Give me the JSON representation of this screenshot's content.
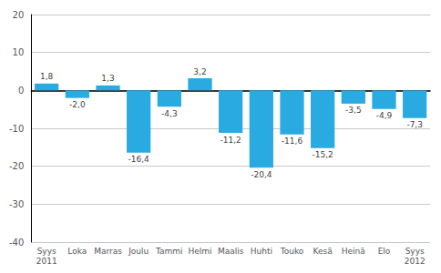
{
  "chart_data": {
    "type": "bar",
    "categories": [
      "Syys\n2011",
      "Loka",
      "Marras",
      "Joulu",
      "Tammi",
      "Helmi",
      "Maalis",
      "Huhti",
      "Touko",
      "Kesä",
      "Heinä",
      "Elo",
      "Syys\n2012"
    ],
    "values": [
      1.8,
      -2.0,
      1.3,
      -16.4,
      -4.3,
      3.2,
      -11.2,
      -20.4,
      -11.6,
      -15.2,
      -3.5,
      -4.9,
      -7.3
    ],
    "value_labels": [
      "1,8",
      "-2,0",
      "1,3",
      "-16,4",
      "-4,3",
      "3,2",
      "-11,2",
      "-20,4",
      "-11,6",
      "-15,2",
      "-3,5",
      "-4,9",
      "-7,3"
    ],
    "data_labels": true,
    "color": "#29abe2",
    "ylim": [
      -40,
      20
    ],
    "yticks": [
      -40,
      -30,
      -20,
      -10,
      0,
      10,
      20
    ],
    "grid": true
  }
}
